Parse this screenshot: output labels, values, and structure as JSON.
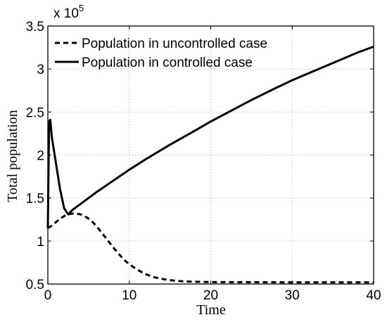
{
  "chart_data": {
    "type": "line",
    "xlabel": "Time",
    "ylabel": "Total population",
    "xlim": [
      0,
      40
    ],
    "ylim": [
      0.5,
      3.5
    ],
    "y_multiplier": {
      "base": "x 10",
      "exponent": "5"
    },
    "xticks": [
      0,
      10,
      20,
      30,
      40
    ],
    "yticks": [
      0.5,
      1,
      1.5,
      2,
      2.5,
      3,
      3.5
    ],
    "grid": true,
    "legend_position": "top-left",
    "series": [
      {
        "name": "Population in uncontrolled case",
        "line_style": "dashed",
        "color": "#000000",
        "x": [
          0,
          0.5,
          1,
          1.5,
          2,
          2.5,
          3,
          3.5,
          4,
          4.5,
          5,
          5.5,
          6,
          6.5,
          7,
          7.5,
          8,
          8.5,
          9,
          9.5,
          10,
          11,
          12,
          13,
          14,
          15,
          16,
          17,
          18,
          19,
          20,
          22,
          25,
          30,
          35,
          40
        ],
        "y": [
          1.15,
          1.18,
          1.22,
          1.26,
          1.29,
          1.31,
          1.32,
          1.32,
          1.31,
          1.29,
          1.26,
          1.22,
          1.17,
          1.11,
          1.05,
          0.99,
          0.93,
          0.87,
          0.82,
          0.77,
          0.73,
          0.665,
          0.615,
          0.58,
          0.56,
          0.545,
          0.535,
          0.53,
          0.527,
          0.525,
          0.523,
          0.522,
          0.521,
          0.52,
          0.52,
          0.52
        ]
      },
      {
        "name": "Population in controlled case",
        "line_style": "solid",
        "color": "#000000",
        "x": [
          0,
          0.05,
          0.1,
          0.15,
          0.2,
          0.3,
          0.5,
          1,
          1.5,
          2,
          2.5,
          3,
          4,
          5,
          6,
          8,
          10,
          12,
          15,
          18,
          20,
          22,
          25,
          28,
          30,
          32,
          35,
          38,
          40
        ],
        "y": [
          1.15,
          1.6,
          2.0,
          2.3,
          2.4,
          2.41,
          2.2,
          1.9,
          1.6,
          1.38,
          1.31,
          1.36,
          1.43,
          1.5,
          1.57,
          1.7,
          1.83,
          1.95,
          2.12,
          2.28,
          2.39,
          2.49,
          2.64,
          2.78,
          2.87,
          2.95,
          3.07,
          3.19,
          3.26
        ]
      }
    ]
  }
}
